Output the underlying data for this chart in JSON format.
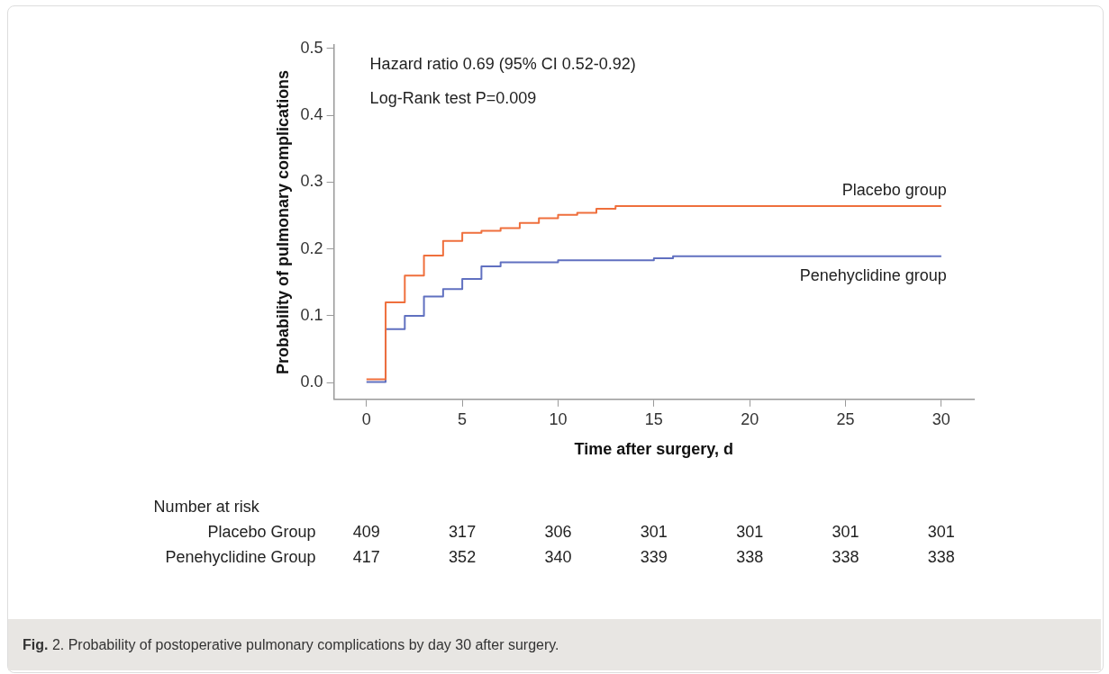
{
  "chart_data": {
    "type": "step",
    "xlabel": "Time after surgery, d",
    "ylabel": "Probability of pulmonary complications",
    "xlim": [
      -1.7,
      31.7
    ],
    "xticks": [
      0,
      5,
      10,
      15,
      20,
      25,
      30
    ],
    "ylim": [
      -0.025,
      0.505
    ],
    "yticks": [
      {
        "value": 0,
        "label": "0.0"
      },
      {
        "value": 0.1,
        "label": "0.1"
      },
      {
        "value": 0.2,
        "label": "0.2"
      },
      {
        "value": 0.3,
        "label": "0.3"
      },
      {
        "value": 0.4,
        "label": "0.4"
      },
      {
        "value": 0.5,
        "label": "0.5"
      }
    ],
    "grid": false,
    "legend": false,
    "marker": "none",
    "line_style": "solid",
    "series": [
      {
        "name": "Placebo group",
        "color": "#ef6f3c",
        "x": [
          0,
          1,
          2,
          3,
          4,
          5,
          6,
          7,
          8,
          9,
          10,
          11,
          12,
          13,
          30
        ],
        "values": [
          0.005,
          0.12,
          0.16,
          0.19,
          0.212,
          0.224,
          0.227,
          0.231,
          0.239,
          0.246,
          0.251,
          0.254,
          0.26,
          0.264,
          0.264
        ]
      },
      {
        "name": "Penehyclidine group",
        "color": "#6070c0",
        "x": [
          0,
          1,
          2,
          3,
          4,
          5,
          6,
          7,
          10,
          15,
          16,
          30
        ],
        "values": [
          0.001,
          0.08,
          0.1,
          0.129,
          0.14,
          0.155,
          0.174,
          0.18,
          0.183,
          0.186,
          0.189,
          0.189
        ]
      }
    ],
    "annotations": [
      "Hazard ratio 0.69 (95% CI 0.52-0.92)",
      "Log-Rank test P=0.009",
      "Number at risk",
      "Placebo Group",
      "409",
      "317",
      "306",
      "301",
      "301",
      "301",
      "301",
      "Penehyclidine Group",
      "417",
      "352",
      "340",
      "339",
      "338",
      "338",
      "338",
      "Fig. 2. Probability of postoperative pulmonary complications by day 30 after surgery."
    ]
  }
}
